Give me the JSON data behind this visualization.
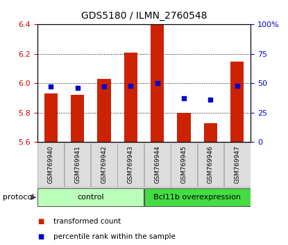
{
  "title": "GDS5180 / ILMN_2760548",
  "samples": [
    "GSM769940",
    "GSM769941",
    "GSM769942",
    "GSM769943",
    "GSM769944",
    "GSM769945",
    "GSM769946",
    "GSM769947"
  ],
  "transformed_counts": [
    5.93,
    5.92,
    6.03,
    6.21,
    6.4,
    5.8,
    5.73,
    6.15
  ],
  "percentile_ranks": [
    47,
    46,
    47,
    48,
    50,
    37,
    36,
    48
  ],
  "ylim": [
    5.6,
    6.4
  ],
  "yticks": [
    5.6,
    5.8,
    6.0,
    6.2,
    6.4
  ],
  "right_yticks": [
    0,
    25,
    50,
    75,
    100
  ],
  "bar_color": "#cc2200",
  "dot_color": "#0000cc",
  "bar_bottom": 5.6,
  "groups": [
    {
      "label": "control",
      "start": 0,
      "end": 4,
      "color": "#bbffbb"
    },
    {
      "label": "Bcl11b overexpression",
      "start": 4,
      "end": 8,
      "color": "#44dd44"
    }
  ],
  "protocol_label": "protocol",
  "legend_items": [
    {
      "label": "transformed count",
      "color": "#cc2200"
    },
    {
      "label": "percentile rank within the sample",
      "color": "#0000cc"
    }
  ],
  "tick_label_color_left": "#cc0000",
  "tick_label_color_right": "#0000cc",
  "background_color": "#ffffff",
  "grid_color": "#000000",
  "bar_width": 0.5,
  "title_fontsize": 10,
  "axis_fontsize": 8,
  "sample_fontsize": 6.5,
  "group_fontsize": 8,
  "legend_fontsize": 7.5
}
